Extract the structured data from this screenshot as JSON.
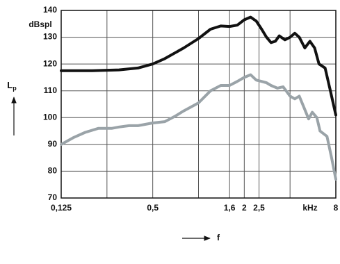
{
  "chart_data": {
    "type": "line",
    "y_unit": "dBspl",
    "y_label": "L",
    "y_label_subscript": "p",
    "x_label": "f",
    "x_unit": "kHz",
    "xscale": "log",
    "xlim": [
      0.125,
      8
    ],
    "xticks": [
      {
        "value": 0.125,
        "label": "0,125"
      },
      {
        "value": 0.5,
        "label": "0,5"
      },
      {
        "value": 1.6,
        "label": "1,6"
      },
      2,
      {
        "value": 2.5,
        "label": "2,5"
      },
      8
    ],
    "xgrid_unlabeled": [
      0.25,
      1,
      4
    ],
    "ylim": [
      70,
      140
    ],
    "yticks": [
      70,
      80,
      90,
      100,
      110,
      120,
      130,
      140
    ],
    "grid": true,
    "series": [
      {
        "color": "#111111",
        "x": [
          0.125,
          0.2,
          0.3,
          0.4,
          0.5,
          0.6,
          0.8,
          1.0,
          1.2,
          1.4,
          1.6,
          1.8,
          2.0,
          2.2,
          2.4,
          2.6,
          2.8,
          3.0,
          3.2,
          3.4,
          3.7,
          4.0,
          4.3,
          4.6,
          5.0,
          5.4,
          5.8,
          6.2,
          6.8,
          7.3,
          8
        ],
        "values": [
          117.5,
          117.5,
          117.8,
          118.5,
          120,
          122,
          126,
          129.5,
          133,
          134.2,
          134,
          134.5,
          136.5,
          137.5,
          136,
          133,
          130,
          128,
          128.5,
          130.5,
          129,
          130,
          131.5,
          130,
          126,
          128.5,
          126,
          120,
          118.5,
          111,
          101
        ]
      },
      {
        "color": "#9aa3a8",
        "x": [
          0.125,
          0.15,
          0.18,
          0.22,
          0.27,
          0.3,
          0.35,
          0.4,
          0.5,
          0.6,
          0.7,
          0.8,
          1.0,
          1.2,
          1.4,
          1.6,
          1.8,
          2.0,
          2.2,
          2.4,
          2.6,
          2.8,
          3.0,
          3.3,
          3.6,
          4.0,
          4.3,
          4.6,
          5.0,
          5.3,
          5.6,
          6.0,
          6.3,
          7.0,
          7.5,
          8
        ],
        "values": [
          90,
          92.5,
          94.5,
          96,
          96,
          96.5,
          97,
          97,
          98,
          98.5,
          100.5,
          102.5,
          105.5,
          110,
          112,
          112,
          113.5,
          115,
          116,
          114,
          113.5,
          113,
          112,
          111,
          111.5,
          108,
          107,
          108,
          103,
          99.5,
          102,
          100,
          95,
          93,
          85,
          77
        ]
      }
    ]
  }
}
